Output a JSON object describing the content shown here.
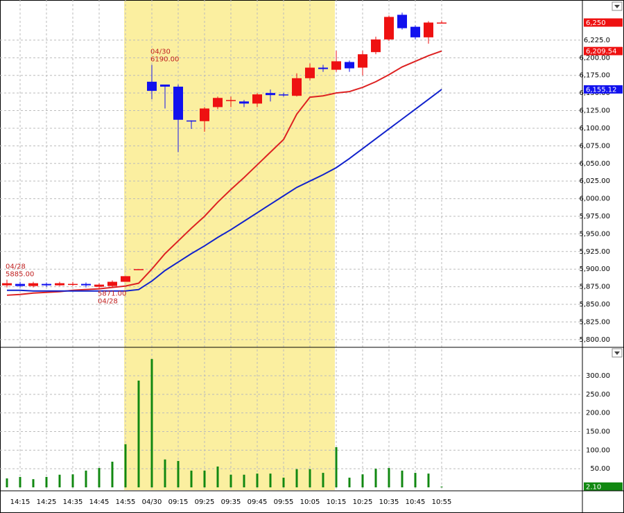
{
  "chart_data": [
    {
      "type": "candlestick",
      "categories": [
        null,
        "14:15",
        null,
        "14:25",
        null,
        "14:35",
        null,
        "14:45",
        null,
        "14:55",
        null,
        "04/30",
        null,
        "09:15",
        null,
        "09:25",
        null,
        "09:35",
        null,
        "09:45",
        null,
        "09:55",
        null,
        "10:05",
        null,
        "10:15",
        null,
        "10:25",
        null,
        "10:35",
        null,
        "10:45",
        null,
        "10:55"
      ],
      "open": [
        5877,
        5879,
        5876,
        5879,
        5877,
        5879,
        5879,
        5875,
        5876,
        5882,
        5900,
        6166,
        6162,
        6159,
        6111,
        6110,
        6130,
        6140,
        6138,
        6135,
        6150,
        6148,
        6146,
        6171,
        6186,
        6183,
        6194,
        6186,
        6208,
        6226,
        6261,
        6244,
        6229,
        6249
      ],
      "high": [
        5885,
        5882,
        5882,
        5881,
        5882,
        5882,
        5881,
        5880,
        5884,
        5890,
        5900,
        6190,
        6162,
        6162,
        6111,
        6130,
        6145,
        6145,
        6140,
        6150,
        6155,
        6150,
        6178,
        6192,
        6190,
        6210,
        6196,
        6210,
        6230,
        6260,
        6264,
        6246,
        6252,
        6253
      ],
      "low": [
        5874,
        5874,
        5874,
        5875,
        5876,
        5876,
        5874,
        5871,
        5874,
        5882,
        5900,
        6141,
        6128,
        6066,
        6099,
        6095,
        6127,
        6130,
        6130,
        6130,
        6138,
        6145,
        6145,
        6168,
        6180,
        6180,
        6180,
        6175,
        6205,
        6224,
        6240,
        6226,
        6220,
        6249
      ],
      "close": [
        5880,
        5876,
        5880,
        5877,
        5880,
        5879,
        5877,
        5878,
        5882,
        5890,
        5900,
        6153,
        6159,
        6112,
        6110,
        6128,
        6143,
        6140,
        6135,
        6148,
        6147,
        6147,
        6171,
        6186,
        6184,
        6195,
        6185,
        6205,
        6226,
        6258,
        6242,
        6229,
        6250,
        6250
      ],
      "up_color": "#ee1111",
      "down_color": "#1111ee",
      "moving_averages": [
        {
          "color": "#dd2222",
          "values": [
            5863,
            5864,
            5866,
            5867,
            5868,
            5870,
            5871,
            5872,
            5874,
            5876,
            5880,
            5900,
            5922,
            5940,
            5958,
            5975,
            5995,
            6013,
            6030,
            6048,
            6066,
            6084,
            6120,
            6144,
            6146,
            6150,
            6152,
            6158,
            6166,
            6176,
            6187,
            6195,
            6203,
            6209.54
          ]
        },
        {
          "color": "#1122cc",
          "values": [
            5870,
            5870,
            5869,
            5869,
            5869,
            5869,
            5869,
            5869,
            5869,
            5869,
            5871,
            5883,
            5898,
            5910,
            5922,
            5933,
            5945,
            5956,
            5968,
            5980,
            5992,
            6004,
            6016,
            6025,
            6034,
            6044,
            6057,
            6071,
            6085,
            6099,
            6113,
            6127,
            6141,
            6155.12
          ]
        }
      ],
      "annotations": [
        {
          "value": 5885,
          "text": [
            "04/28",
            "5885.00"
          ]
        },
        {
          "value": 5871,
          "text": [
            "5871.00",
            "04/28"
          ]
        },
        {
          "value": 6190,
          "text": [
            "04/30",
            "6190.00"
          ]
        }
      ],
      "price_tags": [
        {
          "value": 6250,
          "label": "6,250",
          "color": "#ee1111"
        },
        {
          "value": 6209.54,
          "label": "6,209.54",
          "color": "#ee1111"
        },
        {
          "value": 6155.12,
          "label": "6,155.12",
          "color": "#1111ee"
        }
      ],
      "ylim": [
        5790,
        6282
      ],
      "yticks": [
        {
          "value": 5800,
          "label": "5,800.00"
        },
        {
          "value": 5825,
          "label": "5,825.00"
        },
        {
          "value": 5850,
          "label": "5,850.00"
        },
        {
          "value": 5875,
          "label": "5,875.00"
        },
        {
          "value": 5900,
          "label": "5,900.00"
        },
        {
          "value": 5925,
          "label": "5,925.00"
        },
        {
          "value": 5950,
          "label": "5,950.00"
        },
        {
          "value": 5975,
          "label": "5,975.00"
        },
        {
          "value": 6000,
          "label": "6,000.00"
        },
        {
          "value": 6025,
          "label": "6,025.00"
        },
        {
          "value": 6050,
          "label": "6,050.00"
        },
        {
          "value": 6075,
          "label": "6,075.00"
        },
        {
          "value": 6100,
          "label": "6,100.00"
        },
        {
          "value": 6125,
          "label": "6,125.00"
        },
        {
          "value": 6150,
          "label": "6,150.00"
        },
        {
          "value": 6175,
          "label": "6,175.00"
        },
        {
          "value": 6200,
          "label": "6,200.00"
        },
        {
          "value": 6225,
          "label": "6,225.0"
        }
      ],
      "grid": true
    },
    {
      "type": "bar",
      "values": [
        24,
        28,
        22,
        28,
        34,
        35,
        45,
        52,
        69,
        116,
        287,
        345,
        75,
        71,
        45,
        45,
        56,
        34,
        34,
        37,
        37,
        26,
        49,
        49,
        39,
        108,
        26,
        35,
        50,
        52,
        45,
        39,
        37,
        2.1
      ],
      "color": "#118811",
      "price_tags": [
        {
          "value": 2.1,
          "label": "2.10",
          "color": "#118811"
        }
      ],
      "ylim": [
        0,
        369
      ],
      "yticks": [
        {
          "value": 50,
          "label": "50.00"
        },
        {
          "value": 100,
          "label": "100.00"
        },
        {
          "value": 150,
          "label": "150.00"
        },
        {
          "value": 200,
          "label": "200.00"
        },
        {
          "value": 250,
          "label": "250.00"
        },
        {
          "value": 300,
          "label": "300.00"
        }
      ],
      "grid": true
    }
  ]
}
